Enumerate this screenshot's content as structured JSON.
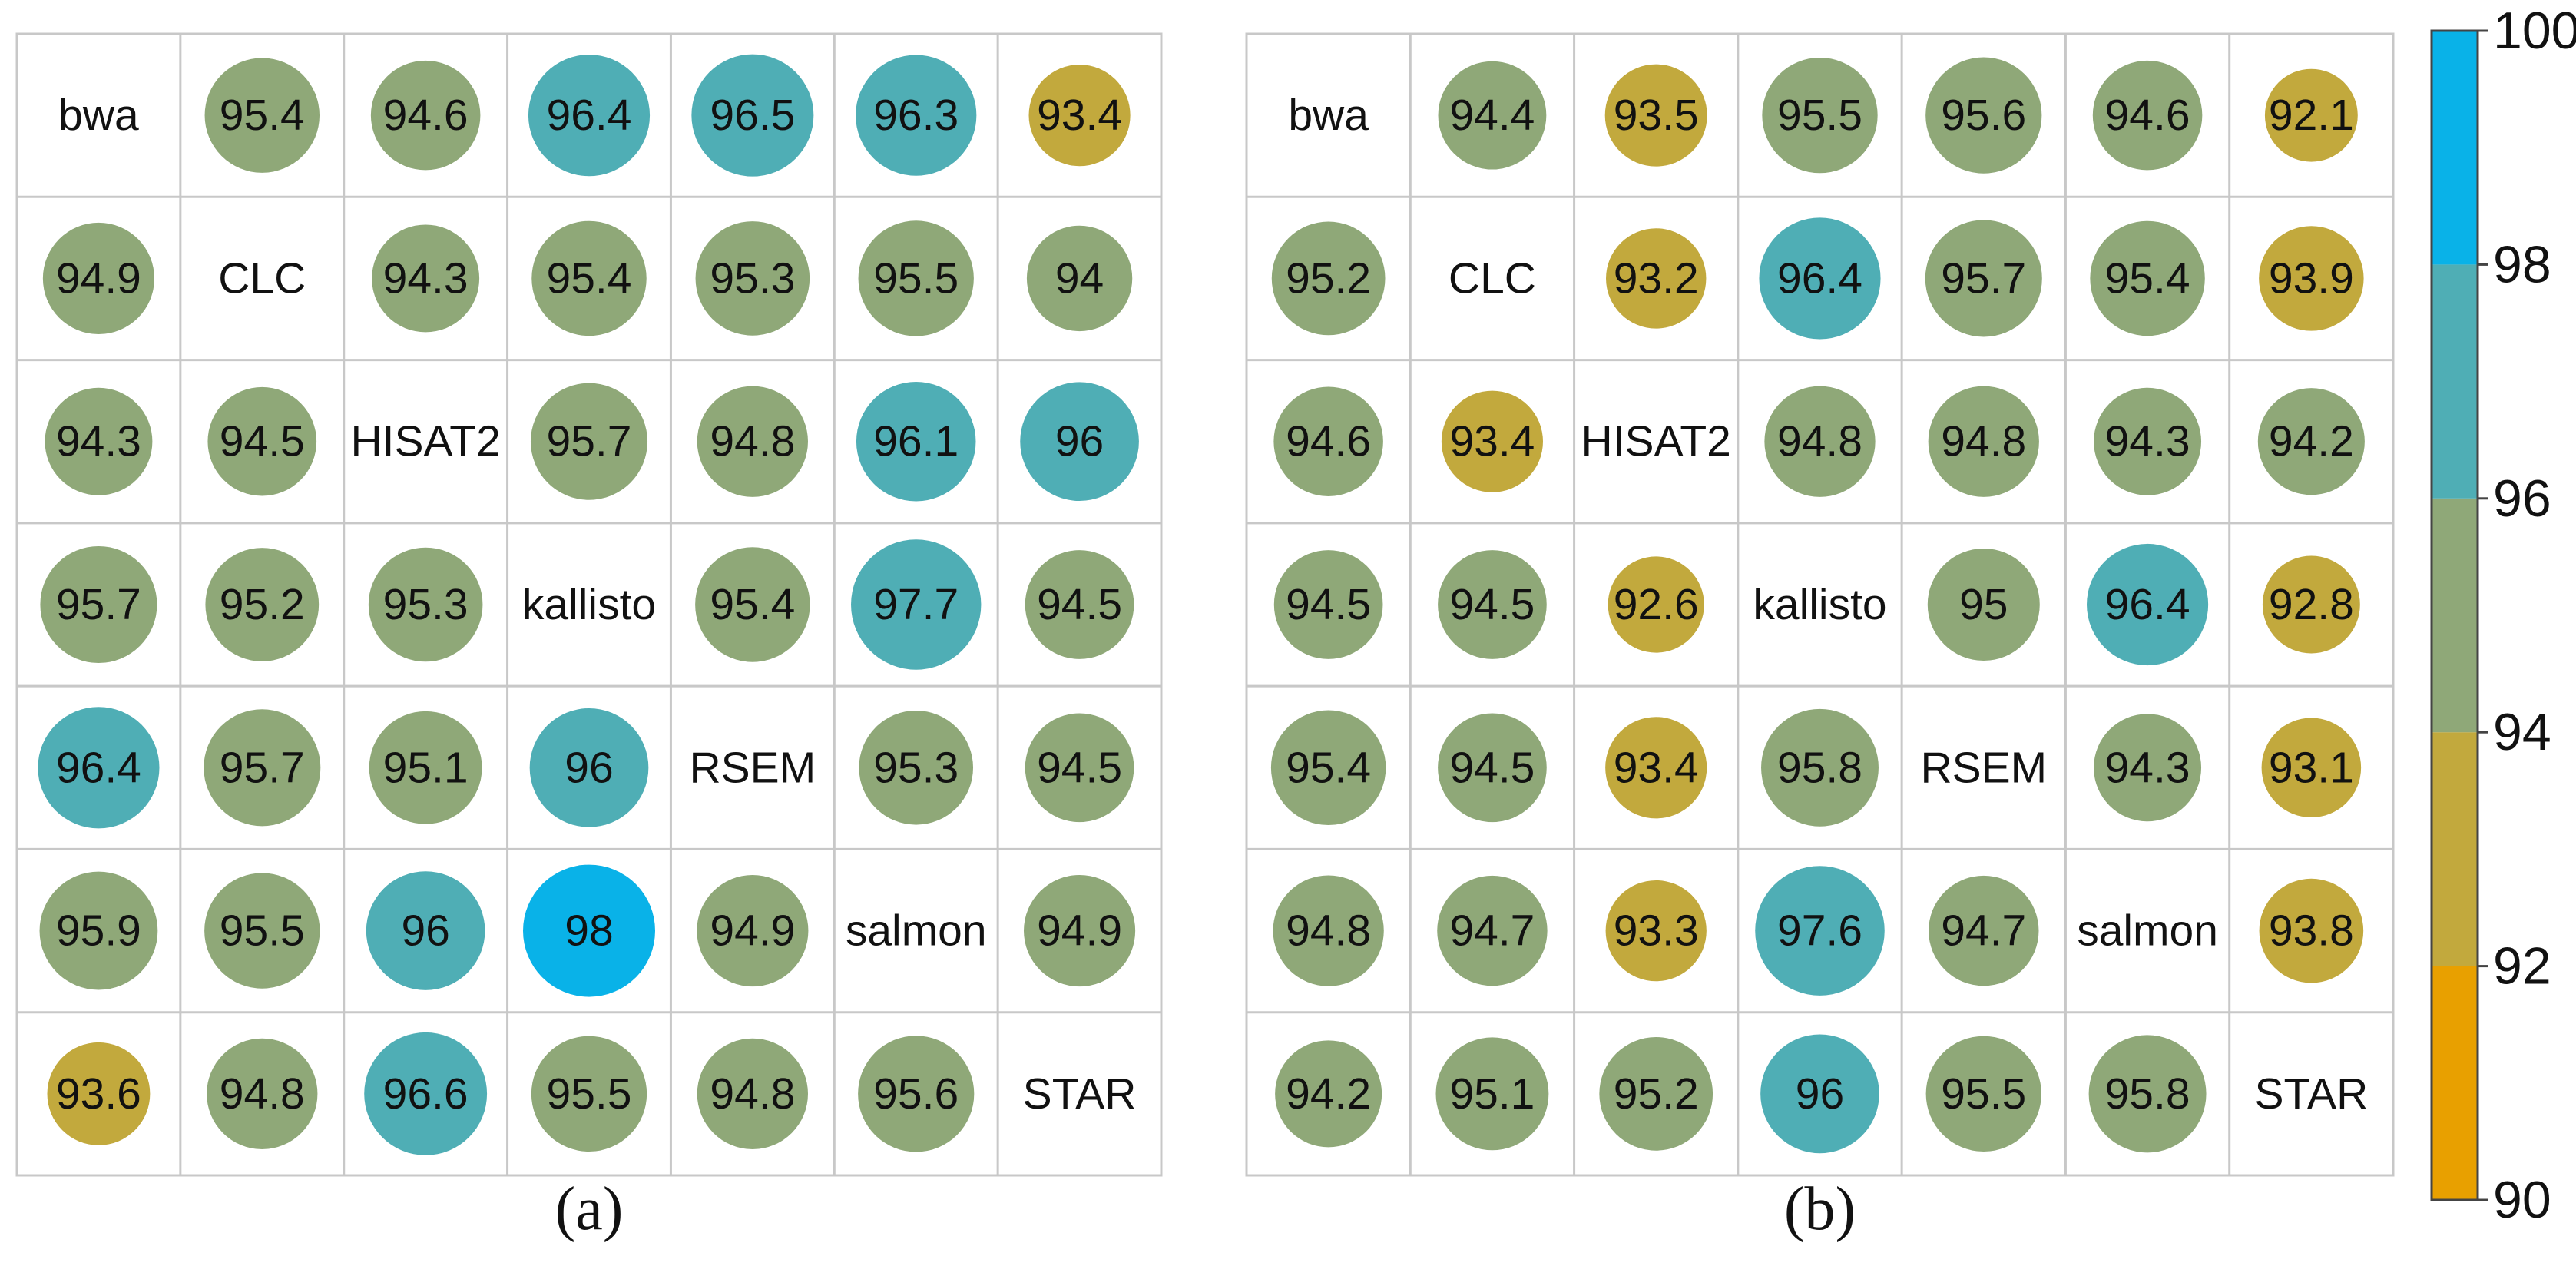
{
  "chart_data": [
    {
      "type": "heatmap",
      "panel_label": "(a)",
      "labels": [
        "bwa",
        "CLC",
        "HISAT2",
        "kallisto",
        "RSEM",
        "salmon",
        "STAR"
      ],
      "matrix": [
        [
          null,
          95.4,
          94.6,
          96.4,
          96.5,
          96.3,
          93.4
        ],
        [
          94.9,
          null,
          94.3,
          95.4,
          95.3,
          95.5,
          94
        ],
        [
          94.3,
          94.5,
          null,
          95.7,
          94.8,
          96.1,
          96
        ],
        [
          95.7,
          95.2,
          95.3,
          null,
          95.4,
          97.7,
          94.5
        ],
        [
          96.4,
          95.7,
          95.1,
          96,
          null,
          95.3,
          94.5
        ],
        [
          95.9,
          95.5,
          96,
          98,
          94.9,
          null,
          94.9
        ],
        [
          93.6,
          94.8,
          96.6,
          95.5,
          94.8,
          95.6,
          null
        ]
      ]
    },
    {
      "type": "heatmap",
      "panel_label": "(b)",
      "labels": [
        "bwa",
        "CLC",
        "HISAT2",
        "kallisto",
        "RSEM",
        "salmon",
        "STAR"
      ],
      "matrix": [
        [
          null,
          94.4,
          93.5,
          95.5,
          95.6,
          94.6,
          92.1
        ],
        [
          95.2,
          null,
          93.2,
          96.4,
          95.7,
          95.4,
          93.9
        ],
        [
          94.6,
          93.4,
          null,
          94.8,
          94.8,
          94.3,
          94.2
        ],
        [
          94.5,
          94.5,
          92.6,
          null,
          95,
          96.4,
          92.8
        ],
        [
          95.4,
          94.5,
          93.4,
          95.8,
          null,
          94.3,
          93.1
        ],
        [
          94.8,
          94.7,
          93.3,
          97.6,
          94.7,
          null,
          93.8
        ],
        [
          94.2,
          95.1,
          95.2,
          96,
          95.5,
          95.8,
          null
        ]
      ]
    }
  ],
  "colorbar": {
    "range": [
      90,
      100
    ],
    "ticks": [
      "90",
      "92",
      "94",
      "96",
      "98",
      "100"
    ],
    "bins": [
      {
        "from": 90,
        "to": 92,
        "color": "#E8A000"
      },
      {
        "from": 92,
        "to": 94,
        "color": "#C2A93D"
      },
      {
        "from": 94,
        "to": 96,
        "color": "#8FA878"
      },
      {
        "from": 96,
        "to": 98,
        "color": "#4FAEB5"
      },
      {
        "from": 98,
        "to": 100,
        "color": "#09B2E8"
      }
    ]
  }
}
